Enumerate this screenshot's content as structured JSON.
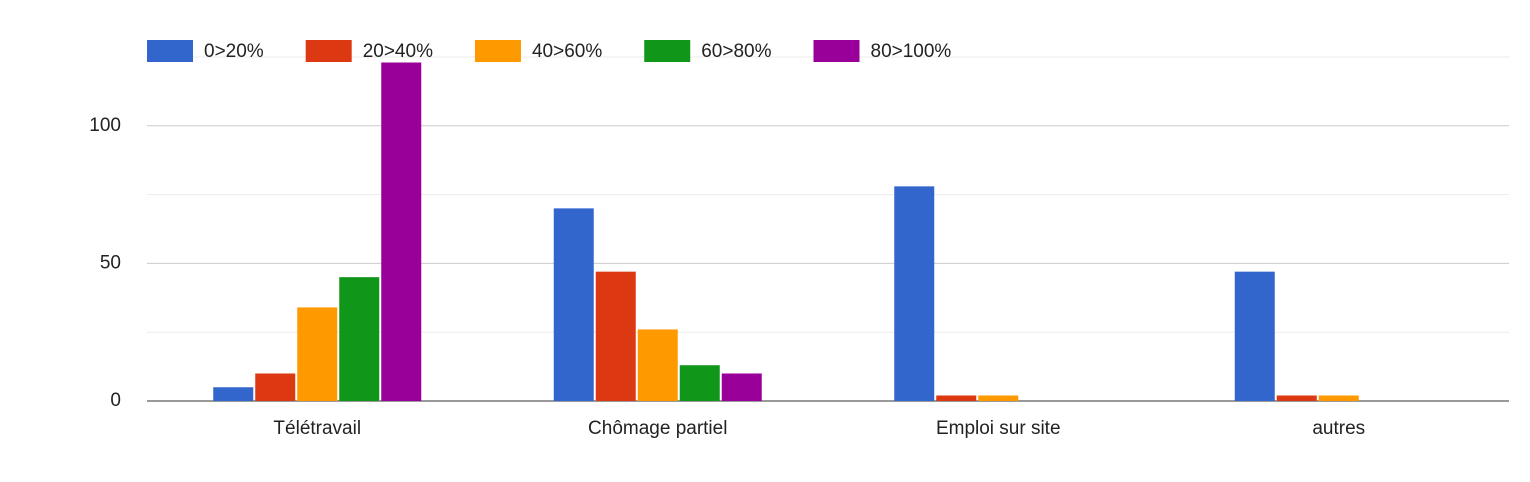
{
  "chart_data": {
    "type": "bar",
    "categories": [
      "Télétravail",
      "Chômage partiel",
      "Emploi sur site",
      "autres"
    ],
    "series": [
      {
        "name": "0>20%",
        "color": "#3366cc",
        "values": [
          5,
          70,
          78,
          47
        ]
      },
      {
        "name": "20>40%",
        "color": "#dc3912",
        "values": [
          10,
          47,
          2,
          2
        ]
      },
      {
        "name": "40>60%",
        "color": "#ff9900",
        "values": [
          34,
          26,
          2,
          2
        ]
      },
      {
        "name": "60>80%",
        "color": "#109618",
        "values": [
          45,
          13,
          0,
          0
        ]
      },
      {
        "name": "80>100%",
        "color": "#990099",
        "values": [
          123,
          10,
          0,
          0
        ]
      }
    ],
    "ylim": [
      0,
      125
    ],
    "yticks": [
      0,
      50,
      100
    ],
    "minor_yticks": [
      25,
      75,
      125
    ],
    "grid": true,
    "legend": "top"
  }
}
